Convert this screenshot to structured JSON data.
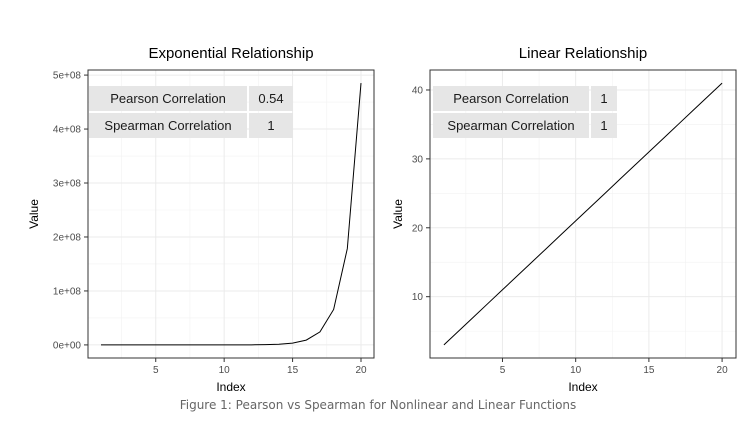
{
  "caption": "Figure 1: Pearson vs Spearman for Nonlinear and Linear Functions",
  "chart_data": [
    {
      "type": "line",
      "title": "Exponential Relationship",
      "xlabel": "Index",
      "ylabel": "Value",
      "x": [
        1,
        2,
        3,
        4,
        5,
        6,
        7,
        8,
        9,
        10,
        11,
        12,
        13,
        14,
        15,
        16,
        17,
        18,
        19,
        20
      ],
      "series": [
        {
          "values": [
            3,
            7,
            20,
            55,
            148,
            403,
            1097,
            2981,
            8103,
            22026,
            59874,
            162755,
            442413,
            1202604,
            3269017,
            8886111,
            24154953,
            65659969,
            178482301,
            485165195
          ]
        }
      ],
      "xlim": [
        0.05,
        20.95
      ],
      "ylim": [
        -24258260,
        509423455
      ],
      "xticks": [
        5,
        10,
        15,
        20
      ],
      "xtick_labels": [
        "5",
        "10",
        "15",
        "20"
      ],
      "yticks": [
        0,
        100000000,
        200000000,
        300000000,
        400000000,
        500000000
      ],
      "ytick_labels": [
        "0e+00",
        "1e+08",
        "2e+08",
        "3e+08",
        "4e+08",
        "5e+08"
      ],
      "grid": true,
      "table": {
        "rows": [
          {
            "label": "Pearson Correlation",
            "value": "0.54"
          },
          {
            "label": "Spearman Correlation",
            "value": "1"
          }
        ]
      }
    },
    {
      "type": "line",
      "title": "Linear Relationship",
      "xlabel": "Index",
      "ylabel": "Value",
      "x": [
        1,
        2,
        3,
        4,
        5,
        6,
        7,
        8,
        9,
        10,
        11,
        12,
        13,
        14,
        15,
        16,
        17,
        18,
        19,
        20
      ],
      "series": [
        {
          "values": [
            3,
            5,
            7,
            9,
            11,
            13,
            15,
            17,
            19,
            21,
            23,
            25,
            27,
            29,
            31,
            33,
            35,
            37,
            39,
            41
          ]
        }
      ],
      "xlim": [
        0.05,
        20.95
      ],
      "ylim": [
        1.1,
        42.9
      ],
      "xticks": [
        5,
        10,
        15,
        20
      ],
      "xtick_labels": [
        "5",
        "10",
        "15",
        "20"
      ],
      "yticks": [
        10,
        20,
        30,
        40
      ],
      "ytick_labels": [
        "10",
        "20",
        "30",
        "40"
      ],
      "grid": true,
      "table": {
        "rows": [
          {
            "label": "Pearson Correlation",
            "value": "1"
          },
          {
            "label": "Spearman Correlation",
            "value": "1"
          }
        ]
      }
    }
  ]
}
